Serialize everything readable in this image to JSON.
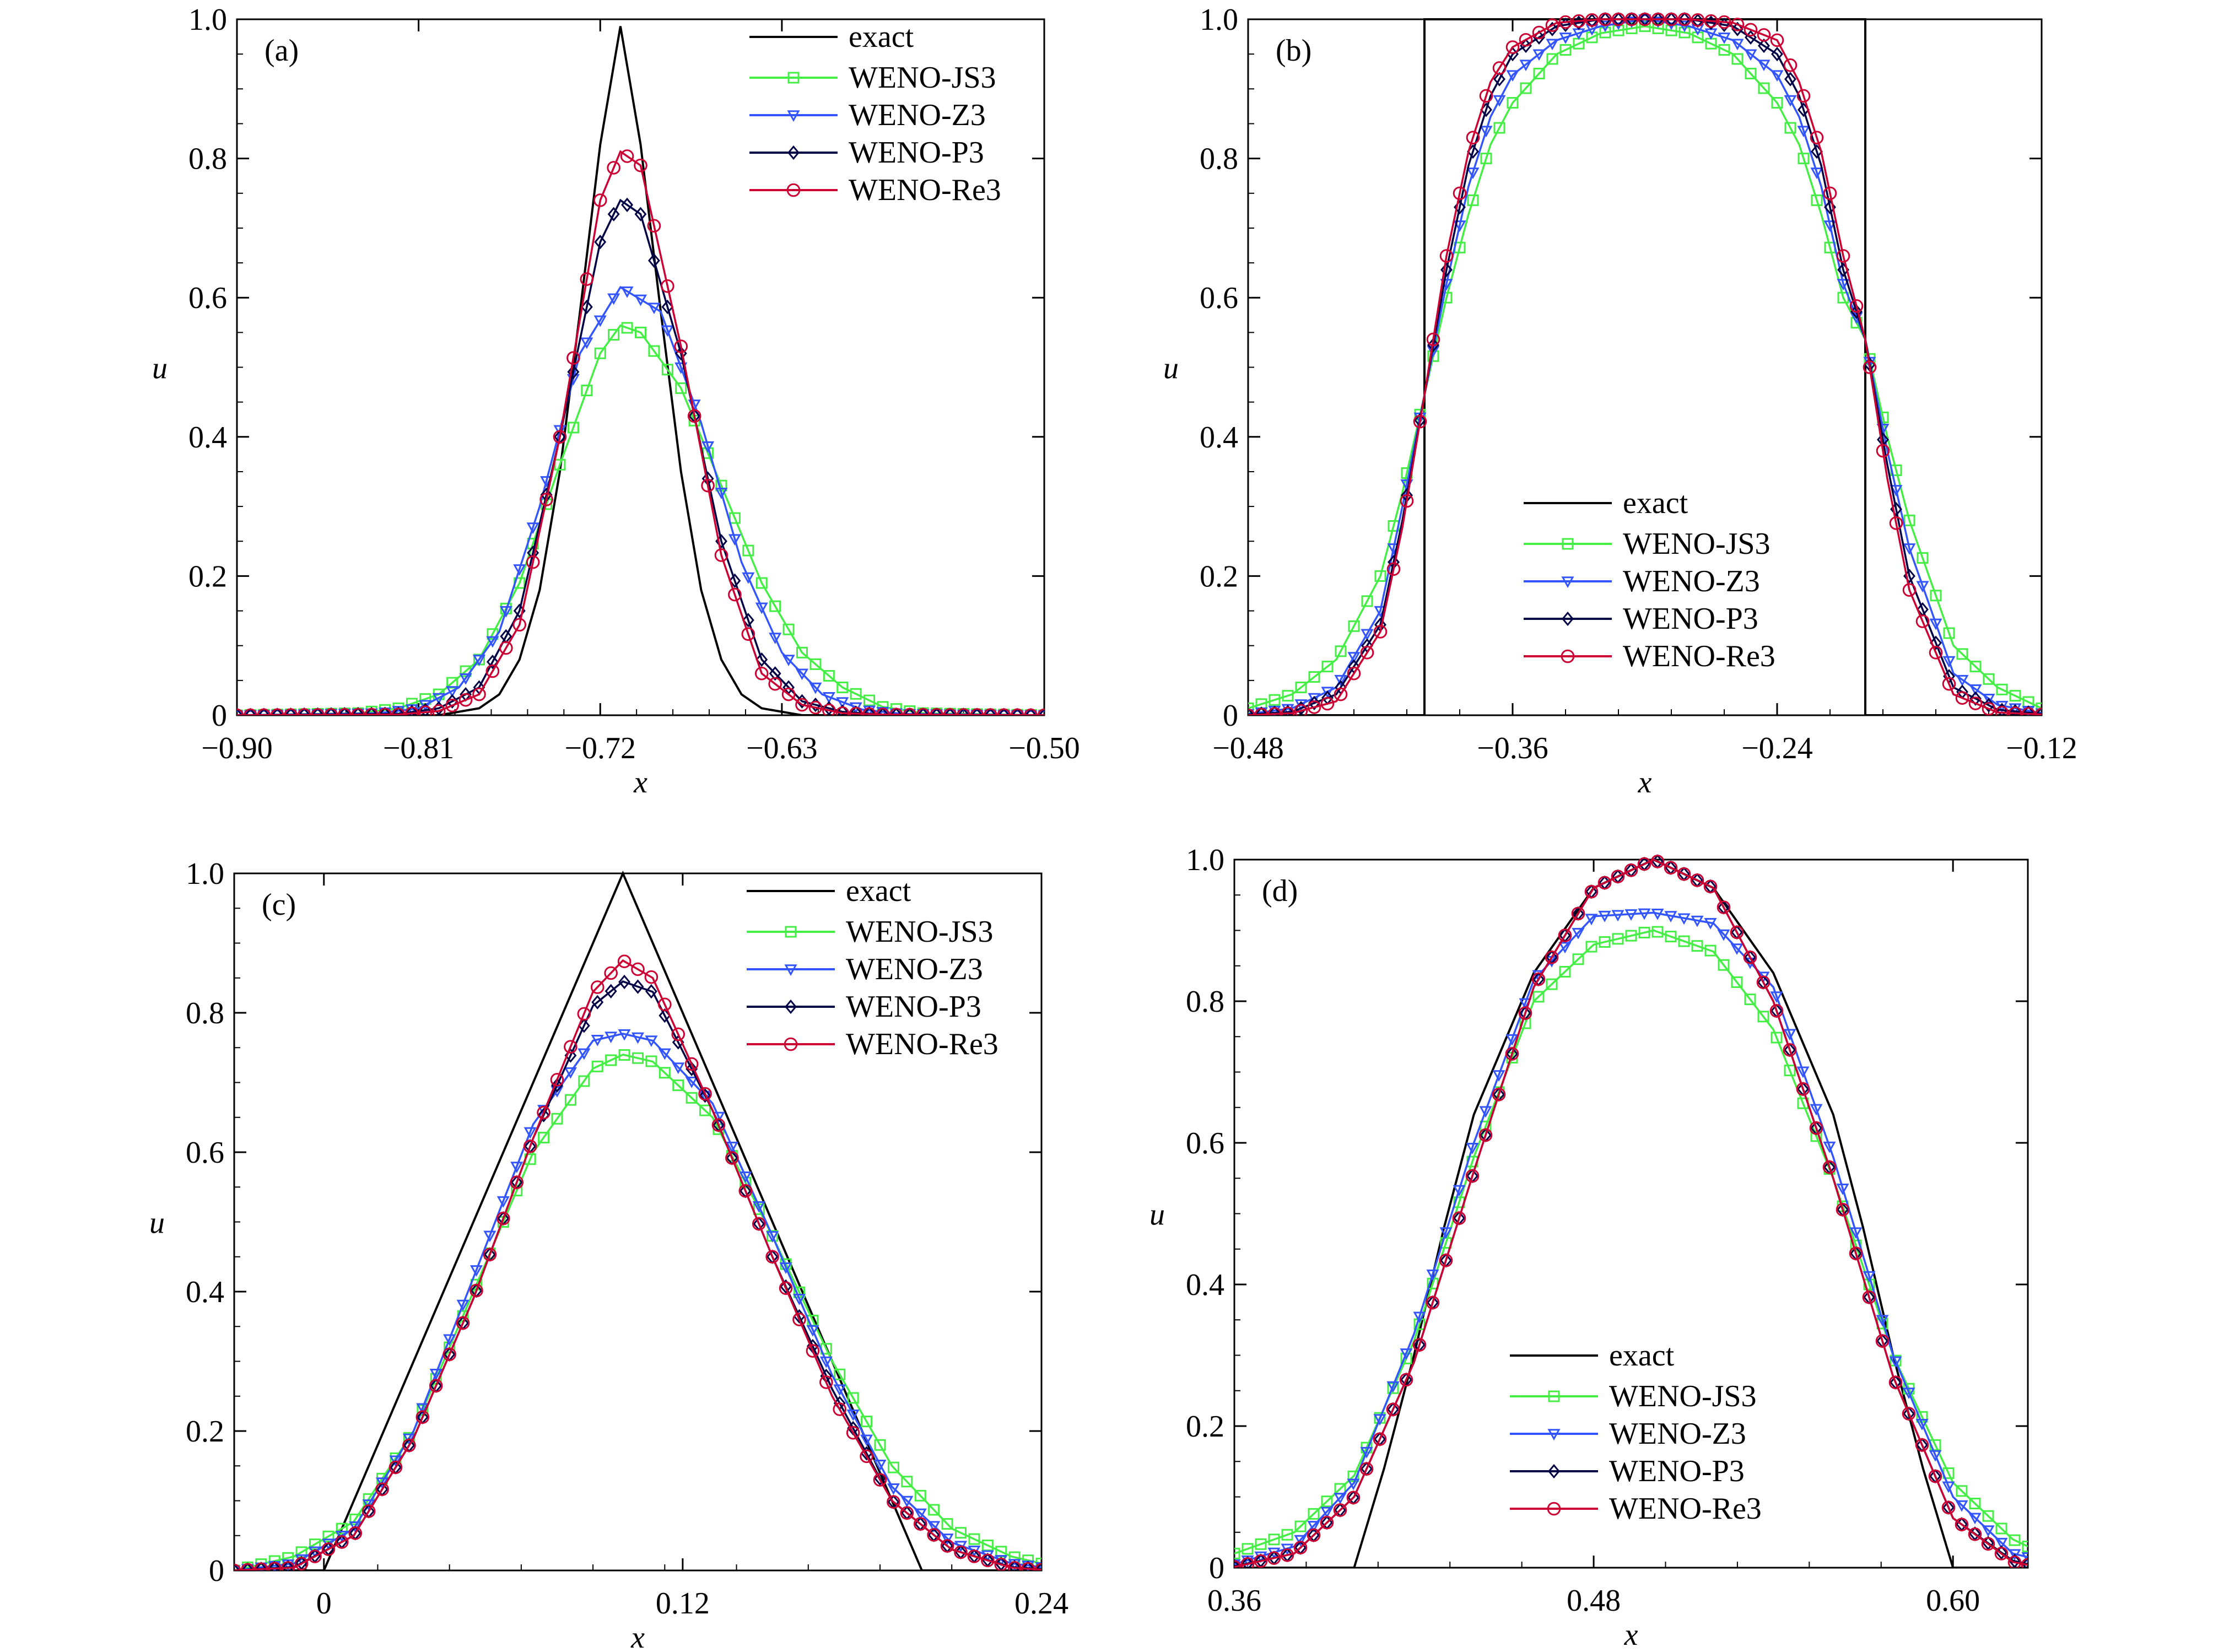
{
  "figure": {
    "series_styles": {
      "exact": {
        "color": "#000000",
        "marker": "none"
      },
      "WENO-JS3": {
        "color": "#44ee44",
        "marker": "square"
      },
      "WENO-Z3": {
        "color": "#3355ff",
        "marker": "triangle-down"
      },
      "WENO-P3": {
        "color": "#000044",
        "marker": "diamond"
      },
      "WENO-Re3": {
        "color": "#cc0033",
        "marker": "circle"
      }
    }
  },
  "chart_data": [
    {
      "type": "line",
      "panel_label": "(a)",
      "xlabel": "x",
      "ylabel": "u",
      "xlim": [
        -0.9,
        -0.5
      ],
      "ylim": [
        0,
        1.0
      ],
      "xticks": [
        -0.9,
        -0.81,
        -0.72,
        -0.63,
        -0.5
      ],
      "xtick_labels": [
        "−0.90",
        "−0.81",
        "−0.72",
        "−0.63",
        "−0.50"
      ],
      "yticks": [
        0,
        0.2,
        0.4,
        0.6,
        0.8,
        1.0
      ],
      "ytick_labels": [
        "0",
        "0.2",
        "0.4",
        "0.6",
        "0.8",
        "1.0"
      ],
      "legend_position": "top-right",
      "series": [
        {
          "name": "exact",
          "x": [
            -0.9,
            -0.8,
            -0.78,
            -0.77,
            -0.76,
            -0.75,
            -0.74,
            -0.73,
            -0.72,
            -0.71,
            -0.7,
            -0.69,
            -0.68,
            -0.67,
            -0.66,
            -0.65,
            -0.64,
            -0.62,
            -0.5
          ],
          "y": [
            0,
            0,
            0.01,
            0.03,
            0.08,
            0.18,
            0.35,
            0.58,
            0.82,
            0.99,
            0.82,
            0.58,
            0.35,
            0.18,
            0.08,
            0.03,
            0.01,
            0,
            0
          ]
        },
        {
          "name": "WENO-JS3",
          "x": [
            -0.9,
            -0.84,
            -0.82,
            -0.8,
            -0.78,
            -0.76,
            -0.74,
            -0.72,
            -0.71,
            -0.7,
            -0.68,
            -0.66,
            -0.64,
            -0.62,
            -0.6,
            -0.58,
            -0.56,
            -0.5
          ],
          "y": [
            0,
            0.003,
            0.01,
            0.03,
            0.08,
            0.19,
            0.36,
            0.52,
            0.56,
            0.55,
            0.47,
            0.33,
            0.19,
            0.09,
            0.04,
            0.012,
            0.003,
            0
          ]
        },
        {
          "name": "WENO-Z3",
          "x": [
            -0.9,
            -0.83,
            -0.81,
            -0.79,
            -0.77,
            -0.75,
            -0.73,
            -0.71,
            -0.69,
            -0.67,
            -0.65,
            -0.63,
            -0.61,
            -0.59,
            -0.57,
            -0.5
          ],
          "y": [
            0,
            0.003,
            0.01,
            0.04,
            0.12,
            0.3,
            0.52,
            0.615,
            0.58,
            0.42,
            0.22,
            0.09,
            0.03,
            0.008,
            0.002,
            0
          ]
        },
        {
          "name": "WENO-P3",
          "x": [
            -0.9,
            -0.82,
            -0.8,
            -0.78,
            -0.76,
            -0.74,
            -0.72,
            -0.71,
            -0.7,
            -0.68,
            -0.66,
            -0.64,
            -0.62,
            -0.6,
            -0.58,
            -0.5
          ],
          "y": [
            0,
            0.002,
            0.01,
            0.04,
            0.15,
            0.4,
            0.68,
            0.74,
            0.72,
            0.52,
            0.25,
            0.08,
            0.02,
            0.005,
            0.001,
            0
          ]
        },
        {
          "name": "WENO-Re3",
          "x": [
            -0.9,
            -0.82,
            -0.8,
            -0.78,
            -0.76,
            -0.74,
            -0.72,
            -0.71,
            -0.7,
            -0.68,
            -0.66,
            -0.64,
            -0.62,
            -0.6,
            -0.58,
            -0.5
          ],
          "y": [
            0,
            0.001,
            0.006,
            0.03,
            0.13,
            0.4,
            0.74,
            0.81,
            0.79,
            0.53,
            0.23,
            0.06,
            0.015,
            0.003,
            0.001,
            0
          ]
        }
      ]
    },
    {
      "type": "line",
      "panel_label": "(b)",
      "xlabel": "x",
      "ylabel": "u",
      "xlim": [
        -0.48,
        -0.12
      ],
      "ylim": [
        0,
        1.0
      ],
      "xticks": [
        -0.48,
        -0.36,
        -0.24,
        -0.12
      ],
      "xtick_labels": [
        "−0.48",
        "−0.36",
        "−0.24",
        "−0.12"
      ],
      "yticks": [
        0,
        0.2,
        0.4,
        0.6,
        0.8,
        1.0
      ],
      "ytick_labels": [
        "0",
        "0.2",
        "0.4",
        "0.6",
        "0.8",
        "1.0"
      ],
      "legend_position": "bottom-center",
      "series": [
        {
          "name": "exact",
          "x": [
            -0.48,
            -0.4,
            -0.4,
            -0.2,
            -0.2,
            -0.12
          ],
          "y": [
            0,
            0,
            1,
            1,
            0,
            0
          ]
        },
        {
          "name": "WENO-JS3",
          "x": [
            -0.48,
            -0.46,
            -0.44,
            -0.42,
            -0.41,
            -0.4,
            -0.39,
            -0.38,
            -0.37,
            -0.36,
            -0.34,
            -0.32,
            -0.3,
            -0.28,
            -0.26,
            -0.24,
            -0.23,
            -0.22,
            -0.21,
            -0.2,
            -0.19,
            -0.18,
            -0.16,
            -0.14,
            -0.12
          ],
          "y": [
            0.01,
            0.03,
            0.08,
            0.2,
            0.32,
            0.46,
            0.6,
            0.72,
            0.82,
            0.88,
            0.95,
            0.98,
            0.99,
            0.98,
            0.95,
            0.88,
            0.82,
            0.72,
            0.6,
            0.54,
            0.4,
            0.28,
            0.1,
            0.04,
            0.01
          ]
        },
        {
          "name": "WENO-Z3",
          "x": [
            -0.48,
            -0.46,
            -0.44,
            -0.42,
            -0.41,
            -0.4,
            -0.39,
            -0.38,
            -0.37,
            -0.36,
            -0.34,
            -0.32,
            -0.3,
            -0.28,
            -0.26,
            -0.24,
            -0.23,
            -0.22,
            -0.21,
            -0.2,
            -0.19,
            -0.18,
            -0.16,
            -0.14,
            -0.12
          ],
          "y": [
            0.002,
            0.01,
            0.04,
            0.15,
            0.3,
            0.46,
            0.62,
            0.76,
            0.86,
            0.92,
            0.97,
            0.99,
            1,
            0.99,
            0.97,
            0.92,
            0.86,
            0.76,
            0.62,
            0.54,
            0.38,
            0.24,
            0.06,
            0.015,
            0.003
          ]
        },
        {
          "name": "WENO-P3",
          "x": [
            -0.48,
            -0.46,
            -0.44,
            -0.42,
            -0.41,
            -0.4,
            -0.39,
            -0.38,
            -0.37,
            -0.36,
            -0.34,
            -0.32,
            -0.3,
            -0.28,
            -0.26,
            -0.24,
            -0.23,
            -0.22,
            -0.21,
            -0.2,
            -0.19,
            -0.18,
            -0.16,
            -0.14,
            -0.12
          ],
          "y": [
            0.001,
            0.005,
            0.03,
            0.13,
            0.28,
            0.46,
            0.64,
            0.79,
            0.89,
            0.95,
            0.99,
            1,
            1,
            1,
            0.99,
            0.95,
            0.89,
            0.79,
            0.64,
            0.54,
            0.36,
            0.2,
            0.04,
            0.008,
            0.002
          ]
        },
        {
          "name": "WENO-Re3",
          "x": [
            -0.48,
            -0.46,
            -0.44,
            -0.42,
            -0.41,
            -0.4,
            -0.39,
            -0.38,
            -0.37,
            -0.36,
            -0.34,
            -0.32,
            -0.3,
            -0.28,
            -0.26,
            -0.24,
            -0.23,
            -0.22,
            -0.21,
            -0.2,
            -0.19,
            -0.18,
            -0.16,
            -0.14,
            -0.12
          ],
          "y": [
            0,
            0.003,
            0.02,
            0.12,
            0.27,
            0.46,
            0.66,
            0.81,
            0.91,
            0.96,
            0.995,
            1,
            1,
            1,
            0.995,
            0.97,
            0.91,
            0.81,
            0.66,
            0.54,
            0.34,
            0.18,
            0.03,
            0.004,
            0.001
          ]
        }
      ]
    },
    {
      "type": "line",
      "panel_label": "(c)",
      "xlabel": "x",
      "ylabel": "u",
      "xlim": [
        -0.03,
        0.24
      ],
      "ylim": [
        0,
        1.0
      ],
      "xticks": [
        0,
        0.12,
        0.24
      ],
      "xtick_labels": [
        "0",
        "0.12",
        "0.24"
      ],
      "yticks": [
        0,
        0.2,
        0.4,
        0.6,
        0.8,
        1.0
      ],
      "ytick_labels": [
        "0",
        "0.2",
        "0.4",
        "0.6",
        "0.8",
        "1.0"
      ],
      "legend_position": "top-right",
      "series": [
        {
          "name": "exact",
          "x": [
            -0.03,
            0,
            0.1,
            0.2,
            0.24
          ],
          "y": [
            0,
            0,
            1,
            0,
            0
          ]
        },
        {
          "name": "WENO-JS3",
          "x": [
            -0.03,
            -0.01,
            0.01,
            0.03,
            0.05,
            0.07,
            0.09,
            0.1,
            0.11,
            0.13,
            0.15,
            0.17,
            0.19,
            0.21,
            0.23,
            0.24
          ],
          "y": [
            0,
            0.02,
            0.07,
            0.2,
            0.4,
            0.6,
            0.72,
            0.74,
            0.73,
            0.65,
            0.48,
            0.3,
            0.15,
            0.06,
            0.02,
            0.01
          ]
        },
        {
          "name": "WENO-Z3",
          "x": [
            -0.03,
            -0.01,
            0.01,
            0.03,
            0.05,
            0.07,
            0.09,
            0.1,
            0.11,
            0.13,
            0.15,
            0.17,
            0.19,
            0.21,
            0.23,
            0.24
          ],
          "y": [
            0,
            0.01,
            0.06,
            0.2,
            0.42,
            0.64,
            0.76,
            0.77,
            0.76,
            0.67,
            0.48,
            0.28,
            0.12,
            0.04,
            0.01,
            0.005
          ]
        },
        {
          "name": "WENO-P3",
          "x": [
            -0.03,
            -0.01,
            0.01,
            0.03,
            0.05,
            0.07,
            0.09,
            0.1,
            0.11,
            0.13,
            0.15,
            0.17,
            0.19,
            0.21,
            0.23,
            0.24
          ],
          "y": [
            0,
            0.005,
            0.05,
            0.19,
            0.39,
            0.62,
            0.81,
            0.845,
            0.83,
            0.66,
            0.45,
            0.26,
            0.1,
            0.03,
            0.005,
            0.002
          ]
        },
        {
          "name": "WENO-Re3",
          "x": [
            -0.03,
            -0.01,
            0.01,
            0.03,
            0.05,
            0.07,
            0.09,
            0.1,
            0.11,
            0.13,
            0.15,
            0.17,
            0.19,
            0.21,
            0.23,
            0.24
          ],
          "y": [
            0,
            0.004,
            0.05,
            0.19,
            0.39,
            0.62,
            0.83,
            0.875,
            0.85,
            0.66,
            0.45,
            0.25,
            0.1,
            0.03,
            0.004,
            0.001
          ]
        }
      ]
    },
    {
      "type": "line",
      "panel_label": "(d)",
      "xlabel": "x",
      "ylabel": "u",
      "xlim": [
        0.36,
        0.625
      ],
      "ylim": [
        0,
        1.0
      ],
      "xticks": [
        0.36,
        0.48,
        0.6
      ],
      "xtick_labels": [
        "0.36",
        "0.48",
        "0.60"
      ],
      "yticks": [
        0,
        0.2,
        0.4,
        0.6,
        0.8,
        1.0
      ],
      "ytick_labels": [
        "0",
        "0.2",
        "0.4",
        "0.6",
        "0.8",
        "1.0"
      ],
      "legend_position": "bottom-center",
      "series": [
        {
          "name": "exact",
          "x": [
            0.36,
            0.4,
            0.41,
            0.42,
            0.43,
            0.44,
            0.46,
            0.48,
            0.5,
            0.52,
            0.54,
            0.56,
            0.57,
            0.58,
            0.59,
            0.6,
            0.625
          ],
          "y": [
            0,
            0,
            0.14,
            0.3,
            0.48,
            0.64,
            0.84,
            0.96,
            1,
            0.96,
            0.84,
            0.64,
            0.48,
            0.3,
            0.14,
            0,
            0
          ]
        },
        {
          "name": "WENO-JS3",
          "x": [
            0.36,
            0.38,
            0.4,
            0.42,
            0.44,
            0.46,
            0.48,
            0.5,
            0.52,
            0.54,
            0.56,
            0.58,
            0.6,
            0.62,
            0.625
          ],
          "y": [
            0.02,
            0.05,
            0.13,
            0.32,
            0.58,
            0.8,
            0.88,
            0.9,
            0.87,
            0.76,
            0.55,
            0.3,
            0.12,
            0.04,
            0.03
          ]
        },
        {
          "name": "WENO-Z3",
          "x": [
            0.36,
            0.38,
            0.4,
            0.42,
            0.44,
            0.46,
            0.48,
            0.5,
            0.52,
            0.54,
            0.56,
            0.58,
            0.6,
            0.62,
            0.625
          ],
          "y": [
            0.005,
            0.03,
            0.12,
            0.33,
            0.6,
            0.83,
            0.92,
            0.925,
            0.91,
            0.82,
            0.58,
            0.3,
            0.1,
            0.02,
            0.015
          ]
        },
        {
          "name": "WENO-P3",
          "x": [
            0.36,
            0.38,
            0.4,
            0.42,
            0.44,
            0.46,
            0.48,
            0.5,
            0.52,
            0.54,
            0.56,
            0.58,
            0.6,
            0.62,
            0.625
          ],
          "y": [
            0.002,
            0.02,
            0.1,
            0.29,
            0.56,
            0.82,
            0.96,
            1,
            0.96,
            0.8,
            0.55,
            0.27,
            0.07,
            0.01,
            0.005
          ]
        },
        {
          "name": "WENO-Re3",
          "x": [
            0.36,
            0.38,
            0.4,
            0.42,
            0.44,
            0.46,
            0.48,
            0.5,
            0.52,
            0.54,
            0.56,
            0.58,
            0.6,
            0.62,
            0.625
          ],
          "y": [
            0.001,
            0.02,
            0.1,
            0.29,
            0.56,
            0.82,
            0.96,
            1,
            0.96,
            0.8,
            0.55,
            0.27,
            0.07,
            0.008,
            0.004
          ]
        }
      ]
    }
  ]
}
